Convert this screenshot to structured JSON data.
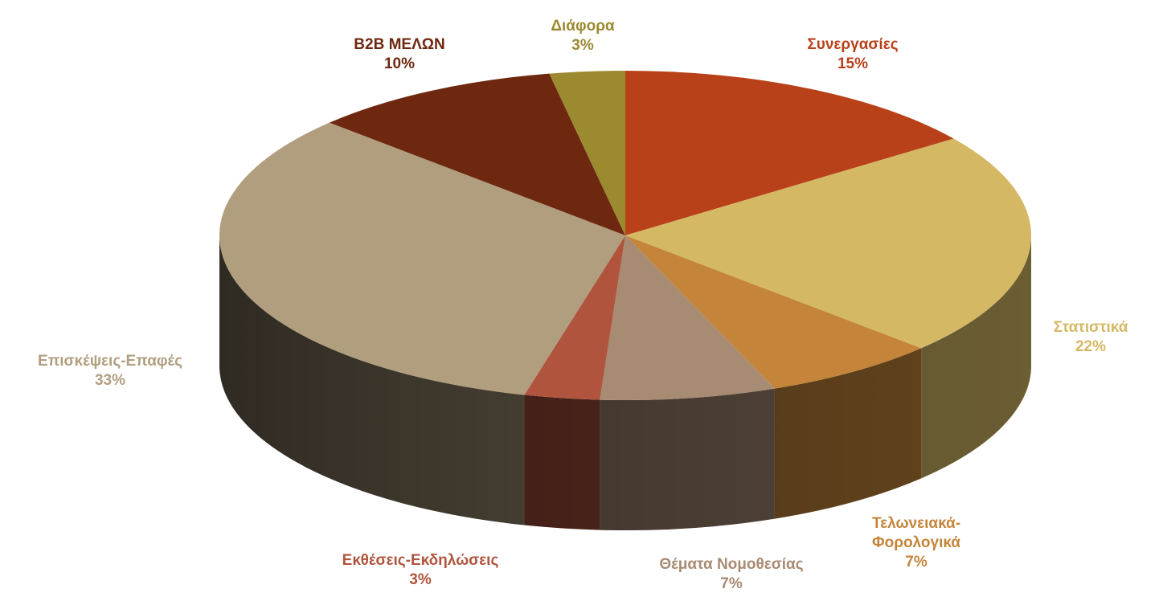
{
  "chart_data": {
    "type": "pie",
    "categories": [
      "Συνεργασίες",
      "Στατιστικά",
      "Τελωνειακά-Φορολογικά",
      "Θέματα Νομοθεσίας",
      "Εκθέσεις-Εκδηλώσεις",
      "Επισκέψεις-Επαφές",
      "B2B ΜΕΛΩΝ",
      "Διάφορα"
    ],
    "values": [
      15,
      22,
      7,
      7,
      3,
      33,
      10,
      3
    ],
    "value_labels": [
      "15%",
      "22%",
      "7%",
      "7%",
      "3%",
      "33%",
      "10%",
      "3%"
    ],
    "colors": [
      "#b9411a",
      "#d4b864",
      "#c4853a",
      "#a88b73",
      "#b0543e",
      "#b09e7e",
      "#6e2810",
      "#9c8a30"
    ]
  }
}
